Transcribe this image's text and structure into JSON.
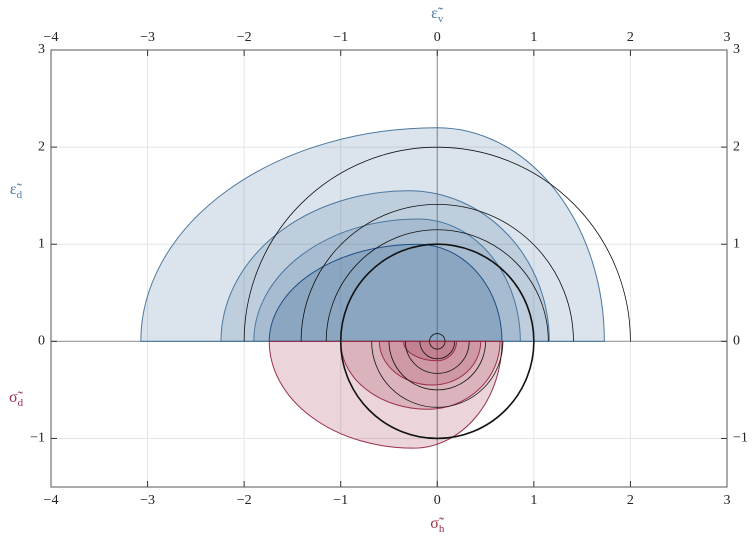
{
  "chart_data": {
    "type": "region",
    "x_label": {
      "symbol": "σ̃",
      "sub": "h"
    },
    "x2_label": {
      "symbol": "ε̃",
      "sub": "v"
    },
    "y_label": {
      "symbol": "ε̃",
      "sub": "d"
    },
    "y_label_lower": {
      "symbol": "σ̃",
      "sub": "d"
    },
    "xlim": [
      -4,
      3
    ],
    "ylim": [
      -1.5,
      3
    ],
    "xticks": [
      {
        "value": -4,
        "label": "−4"
      },
      {
        "value": -3,
        "label": "−3"
      },
      {
        "value": -2,
        "label": "−2"
      },
      {
        "value": -1,
        "label": "−1"
      },
      0,
      1,
      2,
      3
    ],
    "yticks": [
      {
        "value": -1,
        "label": "−1"
      },
      0,
      1,
      2,
      3
    ],
    "grid": true,
    "regions": [
      {
        "side": "upper",
        "x0": -3.07,
        "peak_x": 0,
        "x1": 1.73,
        "peak": 2.2,
        "color": "#4a77a0"
      },
      {
        "side": "upper",
        "x0": -2.24,
        "peak_x": -0.3,
        "x1": 1.16,
        "peak": 1.55,
        "color": "#4a77a0"
      },
      {
        "side": "upper",
        "x0": -1.9,
        "peak_x": -0.2,
        "x1": 0.86,
        "peak": 1.26,
        "color": "#4a77a0"
      },
      {
        "side": "upper",
        "x0": -1.74,
        "peak_x": -0.2,
        "x1": 0.67,
        "peak": 1.0,
        "color": "#1f4f85"
      },
      {
        "side": "lower",
        "x0": -1.74,
        "peak_x": -0.25,
        "x1": 0.67,
        "peak": -1.1,
        "color": "#9a2f48"
      },
      {
        "side": "lower",
        "x0": -1.0,
        "peak_x": -0.1,
        "x1": 0.65,
        "peak": -0.7,
        "color": "#9a2f48"
      },
      {
        "side": "lower",
        "x0": -0.6,
        "peak_x": -0.05,
        "x1": 0.45,
        "peak": -0.45,
        "color": "#9a2f48"
      },
      {
        "side": "lower",
        "x0": -0.35,
        "peak_x": 0,
        "x1": 0.2,
        "peak": -0.2,
        "color": "#9a2f48"
      }
    ],
    "circles": [
      {
        "r": 2,
        "part": "upper",
        "width": 0.8
      },
      {
        "r": 1.41,
        "part": "upper",
        "width": 0.8
      },
      {
        "r": 1.15,
        "part": "upper",
        "width": 0.8
      },
      {
        "r": 1,
        "part": "full",
        "width": 1.6
      },
      {
        "r": 0.68,
        "part": "lower",
        "width": 0.8
      },
      {
        "r": 0.5,
        "part": "lower",
        "width": 0.8
      },
      {
        "r": 0.33,
        "part": "lower",
        "width": 0.8
      },
      {
        "r": 0.18,
        "part": "lower",
        "width": 0.8
      },
      {
        "r": 0.08,
        "part": "full",
        "width": 0.8
      }
    ]
  }
}
